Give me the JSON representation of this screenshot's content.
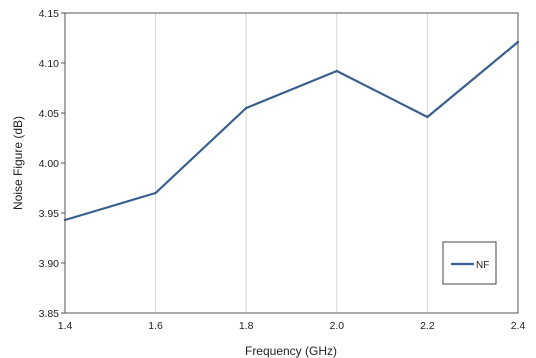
{
  "chart_data": {
    "type": "line",
    "xlabel": "Frequency (GHz)",
    "ylabel": "Noise Figure (dB)",
    "xlim": [
      1.4,
      2.4
    ],
    "ylim": [
      3.85,
      4.15
    ],
    "x_ticks": [
      "1.4",
      "1.6",
      "1.8",
      "2.0",
      "2.2",
      "2.4"
    ],
    "y_ticks": [
      "3.85",
      "3.90",
      "3.95",
      "4.00",
      "4.05",
      "4.10",
      "4.15"
    ],
    "grid": "vertical",
    "legend_position": "bottom-right",
    "series": [
      {
        "name": "NF",
        "color": "#3a5f8f",
        "x": [
          1.4,
          1.6,
          1.8,
          2.0,
          2.2,
          2.4
        ],
        "y": [
          3.943,
          3.97,
          4.055,
          4.092,
          4.046,
          4.121
        ]
      }
    ]
  }
}
